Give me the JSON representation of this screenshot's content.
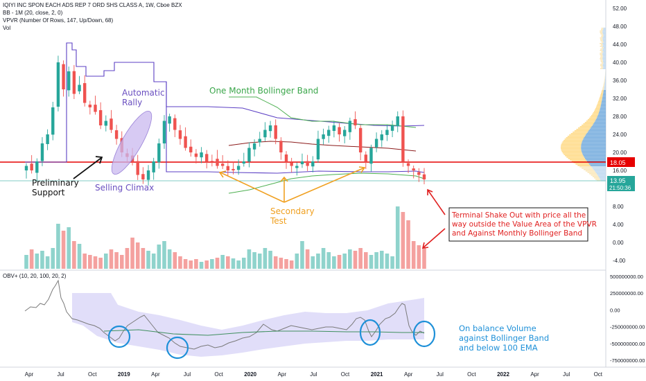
{
  "header": {
    "title": "IQIYI INC SPON EACH ADS REP 7 ORD SHS CLASS A, 1W, Cboe BZX",
    "bb_label": "BB - 1M (20, close, 2, 0)",
    "vpvr_label": "VPVR (Number Of Rows, 147, Up/Down, 68)",
    "vol_label": "Vol",
    "obv_label": "OBV+ (10, 20, 100, 20, 2)"
  },
  "colors": {
    "up": "#26a69a",
    "down": "#ef5350",
    "vol_up": "#8fd3cc",
    "vol_down": "#f4a19f",
    "bb_upper_lower": "#4caf50",
    "bb_basis": "#8b1a1a",
    "vpvr_line": "#5b3fc4",
    "support_line": "#e60000",
    "price_line": "#80cbc4",
    "obv_band": "#d9d6f7",
    "obv_line": "#7a7a7a",
    "obv_ema": "#3f8f5f",
    "anno_purple": "#6a4fc0",
    "anno_green": "#3aa64a",
    "anno_orange": "#f0a020",
    "anno_red": "#e02020",
    "anno_blue": "#1e90d8"
  },
  "annotations": {
    "preliminary_support": [
      "Preliminary",
      "Support"
    ],
    "selling_climax": "Selling Climax",
    "automatic_rally": [
      "Automatic",
      "Rally"
    ],
    "one_month_bb": "One Month Bollinger Band",
    "secondary_test": [
      "Secondary",
      "Test"
    ],
    "terminal": [
      "Terminal Shake Out with price all the",
      "way outside the Value Area of the VPVR",
      "and Against Monthly Bollinger Band"
    ],
    "obv_note": [
      "On balance Volume",
      "against Bollinger Band",
      "and below 100 EMA"
    ]
  },
  "price_badges": {
    "support": "18.05",
    "last": "13.95",
    "timer": "21:50:36"
  },
  "chart_data": [
    {
      "type": "candlestick",
      "title": "IQIYI INC SPON EACH ADS REP 7 ORD SHS CLASS A, 1W, Cboe BZX",
      "ylim": [
        -6,
        53
      ],
      "y_ticks": [
        "52.00",
        "48.00",
        "44.00",
        "40.00",
        "36.00",
        "32.00",
        "28.00",
        "24.00",
        "20.00",
        "16.00",
        "12.00",
        "8.00",
        "4.00",
        "0.00",
        "-4.00"
      ],
      "x_ticks": [
        "Apr",
        "Jul",
        "Oct",
        "2019",
        "Apr",
        "Jul",
        "Oct",
        "2020",
        "Apr",
        "Jul",
        "Oct",
        "2021",
        "Apr",
        "Jul",
        "Oct",
        "2022",
        "Apr",
        "Jul",
        "Oct"
      ],
      "horizontal_levels": [
        18.05,
        13.95
      ],
      "close_path": [
        17,
        16,
        18,
        22,
        24,
        30,
        40,
        34,
        38,
        33,
        35,
        31,
        30,
        29,
        26,
        27,
        25,
        23,
        20,
        19,
        18,
        15,
        14,
        16,
        18,
        22,
        27,
        28,
        25,
        23,
        21,
        20,
        19,
        20,
        18,
        18,
        17,
        17,
        16,
        16,
        17,
        18,
        21,
        22,
        23,
        25,
        26,
        23,
        20,
        18,
        17,
        17,
        18,
        17,
        18,
        23,
        24,
        25,
        26,
        24,
        25,
        27,
        26,
        20,
        18,
        21,
        23,
        24,
        25,
        26,
        28,
        18,
        17,
        16,
        15,
        14
      ],
      "bollinger_1M": {
        "upper": [
          30,
          30,
          30,
          29,
          28,
          27,
          25,
          24,
          24
        ],
        "basis": [
          20,
          20.5,
          21,
          21.5,
          20.5,
          20,
          20.5,
          21,
          20
        ],
        "lower": [
          11,
          12,
          13,
          14,
          13.5,
          14,
          15,
          15.5,
          15
        ]
      },
      "vpvr_value_area_high": [
        22,
        22,
        22,
        22,
        45,
        45,
        41,
        41,
        39,
        39,
        37,
        37,
        35,
        34,
        33,
        32,
        31,
        30,
        29,
        28.5,
        28,
        27.5,
        27,
        26.5,
        26,
        25.8,
        25.5
      ],
      "vpvr_value_area_low": [
        18,
        18,
        18,
        17,
        17,
        17,
        17,
        16,
        16,
        16,
        16,
        16.2
      ]
    },
    {
      "type": "bar",
      "title": "Vol",
      "description_of_pattern": "weekly volume bars, spikes at start and around 2021-Mar"
    },
    {
      "type": "line",
      "title": "OBV+ (10, 20, 100, 20, 2)",
      "ylim": [
        -800000000,
        550000000
      ],
      "y_ticks": [
        "500000000.00",
        "250000000.00",
        "0.00",
        "-250000000.00",
        "-500000000.00",
        "-750000000.00"
      ]
    }
  ]
}
